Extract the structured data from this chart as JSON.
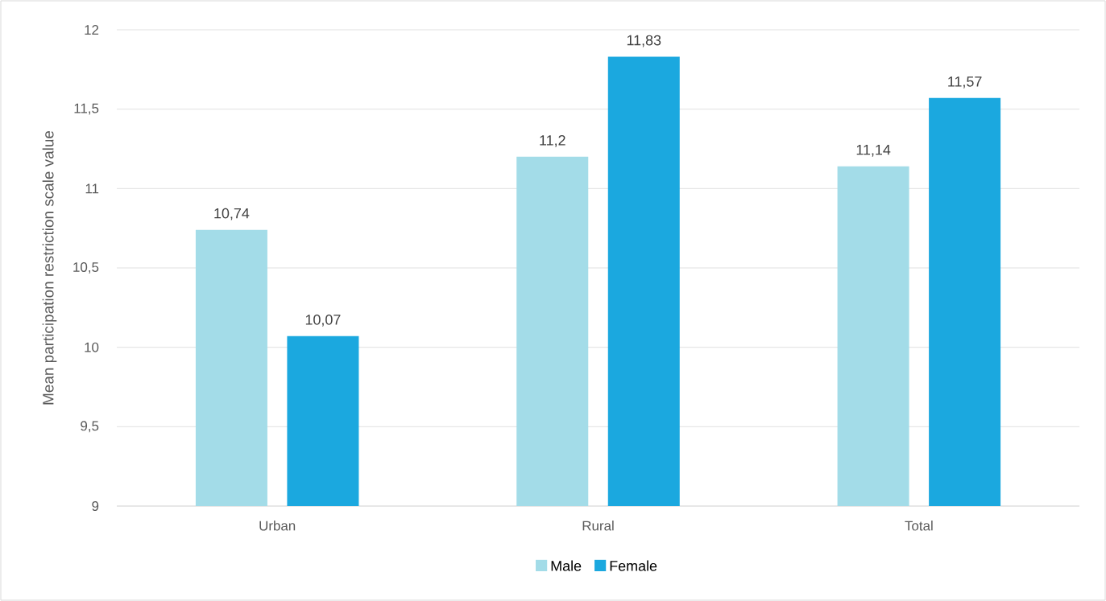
{
  "chart_data": {
    "type": "bar",
    "ylabel": "Mean participation restriction  scale value",
    "categories": [
      "Urban",
      "Rural",
      "Total"
    ],
    "series": [
      {
        "name": "Male",
        "color": "#a3dce8",
        "values": [
          10.74,
          11.2,
          11.14
        ],
        "value_labels": [
          "10,74",
          "11,2",
          "11,14"
        ]
      },
      {
        "name": "Female",
        "color": "#1ba8df",
        "values": [
          10.07,
          11.83,
          11.57
        ],
        "value_labels": [
          "10,07",
          "11,83",
          "11,57"
        ]
      }
    ],
    "ylim": [
      9,
      12
    ],
    "yticks": [
      9,
      {
        "value": 9.5,
        "label": "9,5"
      },
      10,
      {
        "value": 10.5,
        "label": "10,5"
      },
      11,
      {
        "value": 11.5,
        "label": "11,5"
      },
      12
    ],
    "grid": "y",
    "legend": "bottom"
  }
}
